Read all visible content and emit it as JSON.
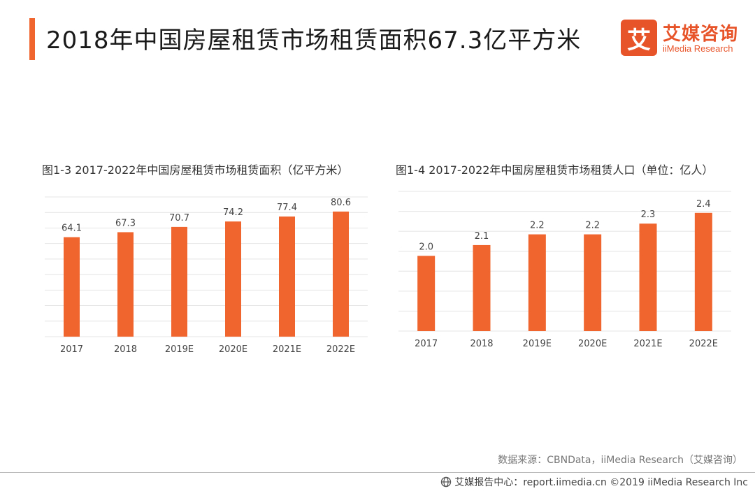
{
  "header": {
    "title": "2018年中国房屋租赁市场租赁面积67.3亿平方米"
  },
  "logo": {
    "mark": "艾",
    "name_cn": "艾媒咨询",
    "name_en": "iiMedia Research"
  },
  "colors": {
    "accent": "#f0642d",
    "bar": "#f0642d",
    "grid": "#e4e4e4"
  },
  "chart_data": [
    {
      "type": "bar",
      "title": "图1-3 2017-2022年中国房屋租赁市场租赁面积（亿平方米）",
      "categories": [
        "2017",
        "2018",
        "2019E",
        "2020E",
        "2021E",
        "2022E"
      ],
      "values": [
        64.1,
        67.3,
        70.7,
        74.2,
        77.4,
        80.6
      ],
      "value_labels": [
        "64.1",
        "67.3",
        "70.7",
        "74.2",
        "77.4",
        "80.6"
      ],
      "ylim": [
        0,
        90
      ],
      "grid": true,
      "legend": "none"
    },
    {
      "type": "bar",
      "title": "图1-4 2017-2022年中国房屋租赁市场租赁人口（单位：亿人）",
      "categories": [
        "2017",
        "2018",
        "2019E",
        "2020E",
        "2021E",
        "2022E"
      ],
      "values": [
        2.0,
        2.1,
        2.2,
        2.2,
        2.3,
        2.4
      ],
      "value_labels": [
        "2.0",
        "2.1",
        "2.2",
        "2.2",
        "2.3",
        "2.4"
      ],
      "ylim": [
        1.3,
        2.6
      ],
      "grid": true,
      "legend": "none"
    }
  ],
  "source": "数据来源：CBNData，iiMedia Research（艾媒咨询）",
  "footer": {
    "text": "艾媒报告中心：report.iimedia.cn ©2019 iiMedia Research Inc",
    "icon": "globe-icon"
  }
}
